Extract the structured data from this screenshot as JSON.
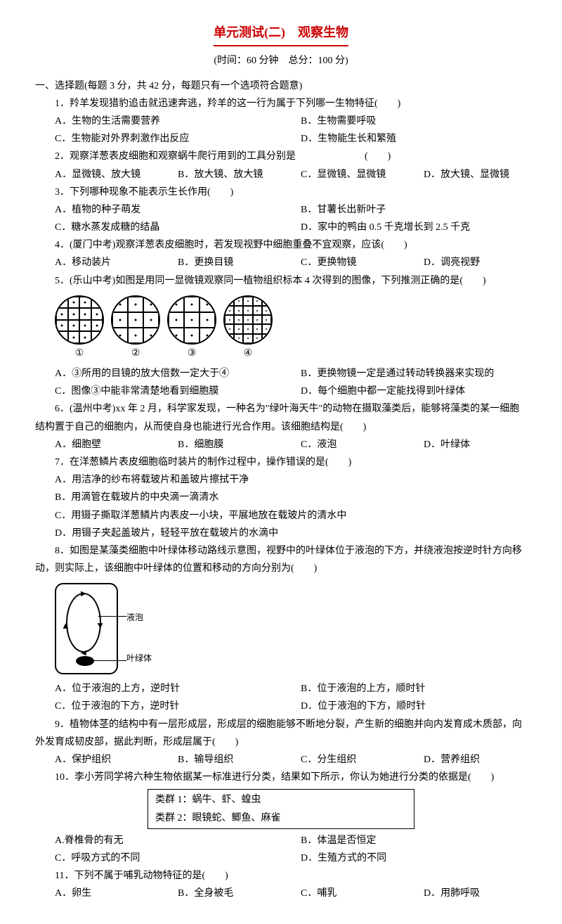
{
  "title": "单元测试(二)　观察生物",
  "subtitle": "(时间：60 分钟　总分：100 分)",
  "section1": "一、选择题(每题 3 分，共 42 分，每题只有一个选项符合题意)",
  "q1": {
    "text": "1．羚羊发现猎豹追击就迅速奔逃，羚羊的这一行为属于下列哪一生物特征(　　)",
    "a": "A．生物的生活需要营养",
    "b": "B．生物需要呼吸",
    "c": "C．生物能对外界刺激作出反应",
    "d": "D．生物能生长和繁殖"
  },
  "q2": {
    "text": "2．观察洋葱表皮细胞和观察蜗牛爬行用到的工具分别是　　　　　　　(　　)",
    "a": "A．显微镜、放大镜",
    "b": "B．放大镜、放大镜",
    "c": "C．显微镜、显微镜",
    "d": "D．放大镜、显微镜"
  },
  "q3": {
    "text": "3．下列哪种现象不能表示生长作用(　　)",
    "a": "A．植物的种子萌发",
    "b": "B．甘薯长出新叶子",
    "c": "C．糖水蒸发成糖的结晶",
    "d": "D．家中的鸭由 0.5 千克增长到 2.5 千克"
  },
  "q4": {
    "text": "4．(厦门中考)观察洋葱表皮细胞时，若发现视野中细胞重叠不宜观察，应该(　　)",
    "a": "A．移动装片",
    "b": "B．更换目镜",
    "c": "C．更换物镜",
    "d": "D．调亮视野"
  },
  "q5": {
    "text": "5．(乐山中考)如图是用同一显微镜观察同一植物组织标本 4 次得到的图像，下列推测正确的是(　　)",
    "labels": [
      "①",
      "②",
      "③",
      "④"
    ],
    "a": "A．③所用的目镜的放大倍数一定大于④",
    "b": "B．更换物镜一定是通过转动转换器来实现的",
    "c": "C．图像③中能非常清楚地看到细胞膜",
    "d": "D．每个细胞中都一定能找得到叶绿体"
  },
  "q6": {
    "text": "6．(温州中考)xx 年 2 月，科学家发现，一种名为\"绿叶海天牛\"的动物在摄取藻类后，能够将藻类的某一细胞结构置于自己的细胞内，从而使自身也能进行光合作用。该细胞结构是(　　)",
    "a": "A．细胞壁",
    "b": "B．细胞膜",
    "c": "C．液泡",
    "d": "D．叶绿体"
  },
  "q7": {
    "text": "7．在洋葱鳞片表皮细胞临时装片的制作过程中，操作错误的是(　　)",
    "a": "A．用洁净的纱布将载玻片和盖玻片擦拭干净",
    "b": "B．用滴管在载玻片的中央滴一滴清水",
    "c": "C．用镊子撕取洋葱鳞片内表皮一小块，平展地放在载玻片的清水中",
    "d": "D．用镊子夹起盖玻片，轻轻平放在载玻片的水滴中"
  },
  "q8": {
    "text": "8．如图是某藻类细胞中叶绿体移动路线示意图，视野中的叶绿体位于液泡的下方，并绕液泡按逆时针方向移动，则实际上，该细胞中叶绿体的位置和移动的方向分别为(　　)",
    "vacuole_label": "液泡",
    "chloroplast_label": "叶绿体",
    "a": "A．位于液泡的上方，逆时针",
    "b": "B．位于液泡的上方，顺时针",
    "c": "C．位于液泡的下方，逆时针",
    "d": "D．位于液泡的下方，顺时针"
  },
  "q9": {
    "text": "9．植物体茎的结构中有一层形成层，形成层的细胞能够不断地分裂，产生新的细胞并向内发育成木质部，向外发育成韧皮部，据此判断，形成层属于(　　)",
    "a": "A．保护组织",
    "b": "B．输导组织",
    "c": "C．分生组织",
    "d": "D．营养组织"
  },
  "q10": {
    "text": "10．李小芳同学将六种生物依据某一标准进行分类，结果如下所示，你认为她进行分类的依据是(　　)",
    "group1": "类群 1：蜗牛、虾、蝗虫",
    "group2": "类群 2：眼镜蛇、鲫鱼、麻雀",
    "a": "A.脊椎骨的有无",
    "b": "B．体温是否恒定",
    "c": "C．呼吸方式的不同",
    "d": "D．生殖方式的不同"
  },
  "q11": {
    "text": "11．下列不属于哺乳动物特征的是(　　)",
    "a": "A．卵生",
    "b": "B．全身被毛",
    "c": "C．哺乳",
    "d": "D．用肺呼吸"
  }
}
